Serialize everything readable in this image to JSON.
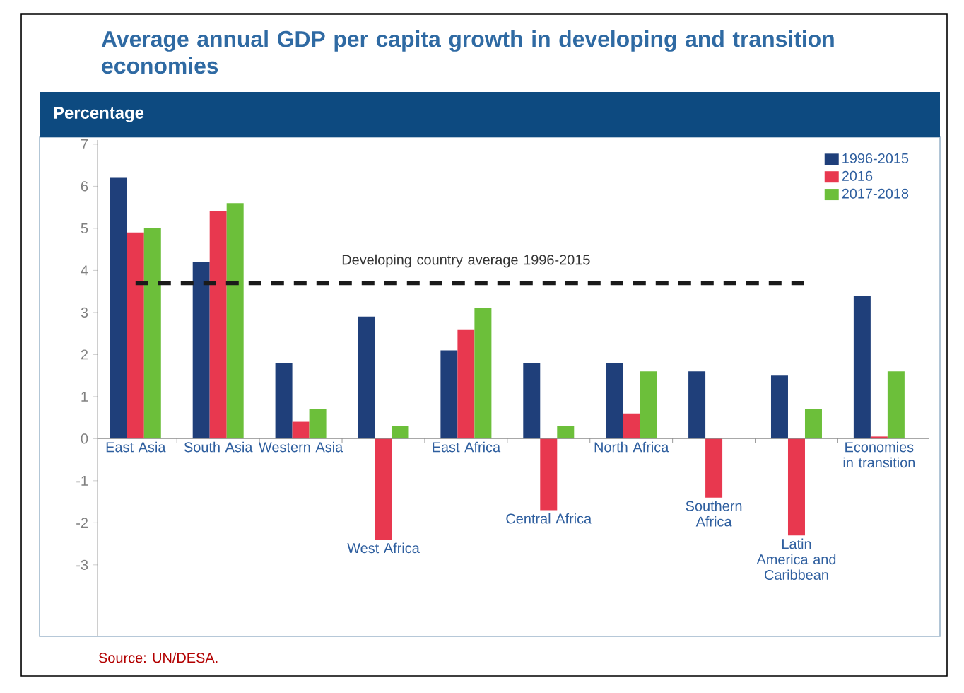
{
  "chart_data": {
    "type": "bar",
    "title": "Average annual GDP per capita growth in developing and transition economies",
    "categories": [
      "East Asia",
      "South Asia",
      "Western Asia",
      "West Africa",
      "East Africa",
      "Central Africa",
      "North Africa",
      "Southern Africa",
      "Latin America and Caribbean",
      "Economies in transition"
    ],
    "series": [
      {
        "name": "1996-2015",
        "color": "#1f3f7a",
        "values": [
          6.2,
          4.2,
          1.8,
          2.9,
          2.1,
          1.8,
          1.8,
          1.6,
          1.5,
          3.4
        ]
      },
      {
        "name": "2016",
        "color": "#e8384f",
        "values": [
          4.9,
          5.4,
          0.4,
          -2.4,
          2.6,
          -1.7,
          0.6,
          -1.4,
          -2.3,
          0.05
        ]
      },
      {
        "name": "2017-2018",
        "color": "#6cbf3a",
        "values": [
          5.0,
          5.6,
          0.7,
          0.3,
          3.1,
          0.3,
          1.6,
          null,
          0.7,
          1.6
        ]
      }
    ],
    "ylim": [
      -4.7,
      7.1
    ],
    "yticks": [
      -3,
      -2,
      -1,
      0,
      1,
      2,
      3,
      4,
      5,
      6,
      7
    ],
    "ref_lines": [
      {
        "axis": "y",
        "value": 3.7,
        "label": "Developing country average 1996-2015",
        "color": "#1a1a1a",
        "line_style": "dashed"
      }
    ],
    "legend": "top right",
    "annotations": [
      "Percentage",
      "Source: UN/DESA."
    ]
  }
}
